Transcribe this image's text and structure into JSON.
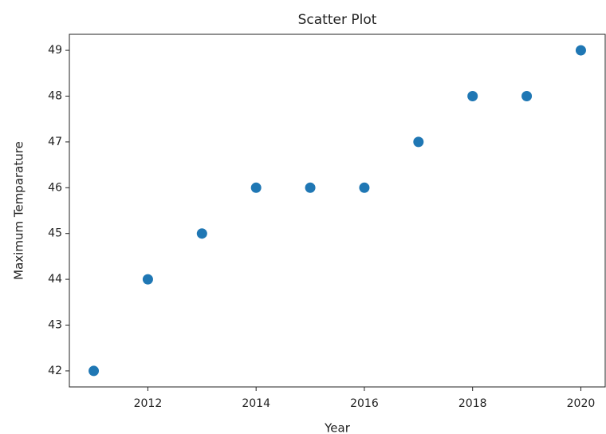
{
  "chart_data": {
    "type": "scatter",
    "title": "Scatter Plot",
    "x_label": "Year",
    "y_label": "Maximum Temparature",
    "x": [
      2011,
      2012,
      2013,
      2014,
      2015,
      2016,
      2017,
      2018,
      2019,
      2020
    ],
    "values": [
      42,
      44,
      45,
      46,
      46,
      46,
      47,
      48,
      48,
      49
    ],
    "color": "#1f77b4",
    "xlim": [
      2010.55,
      2020.45
    ],
    "xticks": [
      2012,
      2014,
      2016,
      2018,
      2020
    ],
    "ylim": [
      41.65,
      49.35
    ],
    "yticks": [
      42,
      43,
      44,
      45,
      46,
      47,
      48,
      49
    ],
    "grid": false
  }
}
